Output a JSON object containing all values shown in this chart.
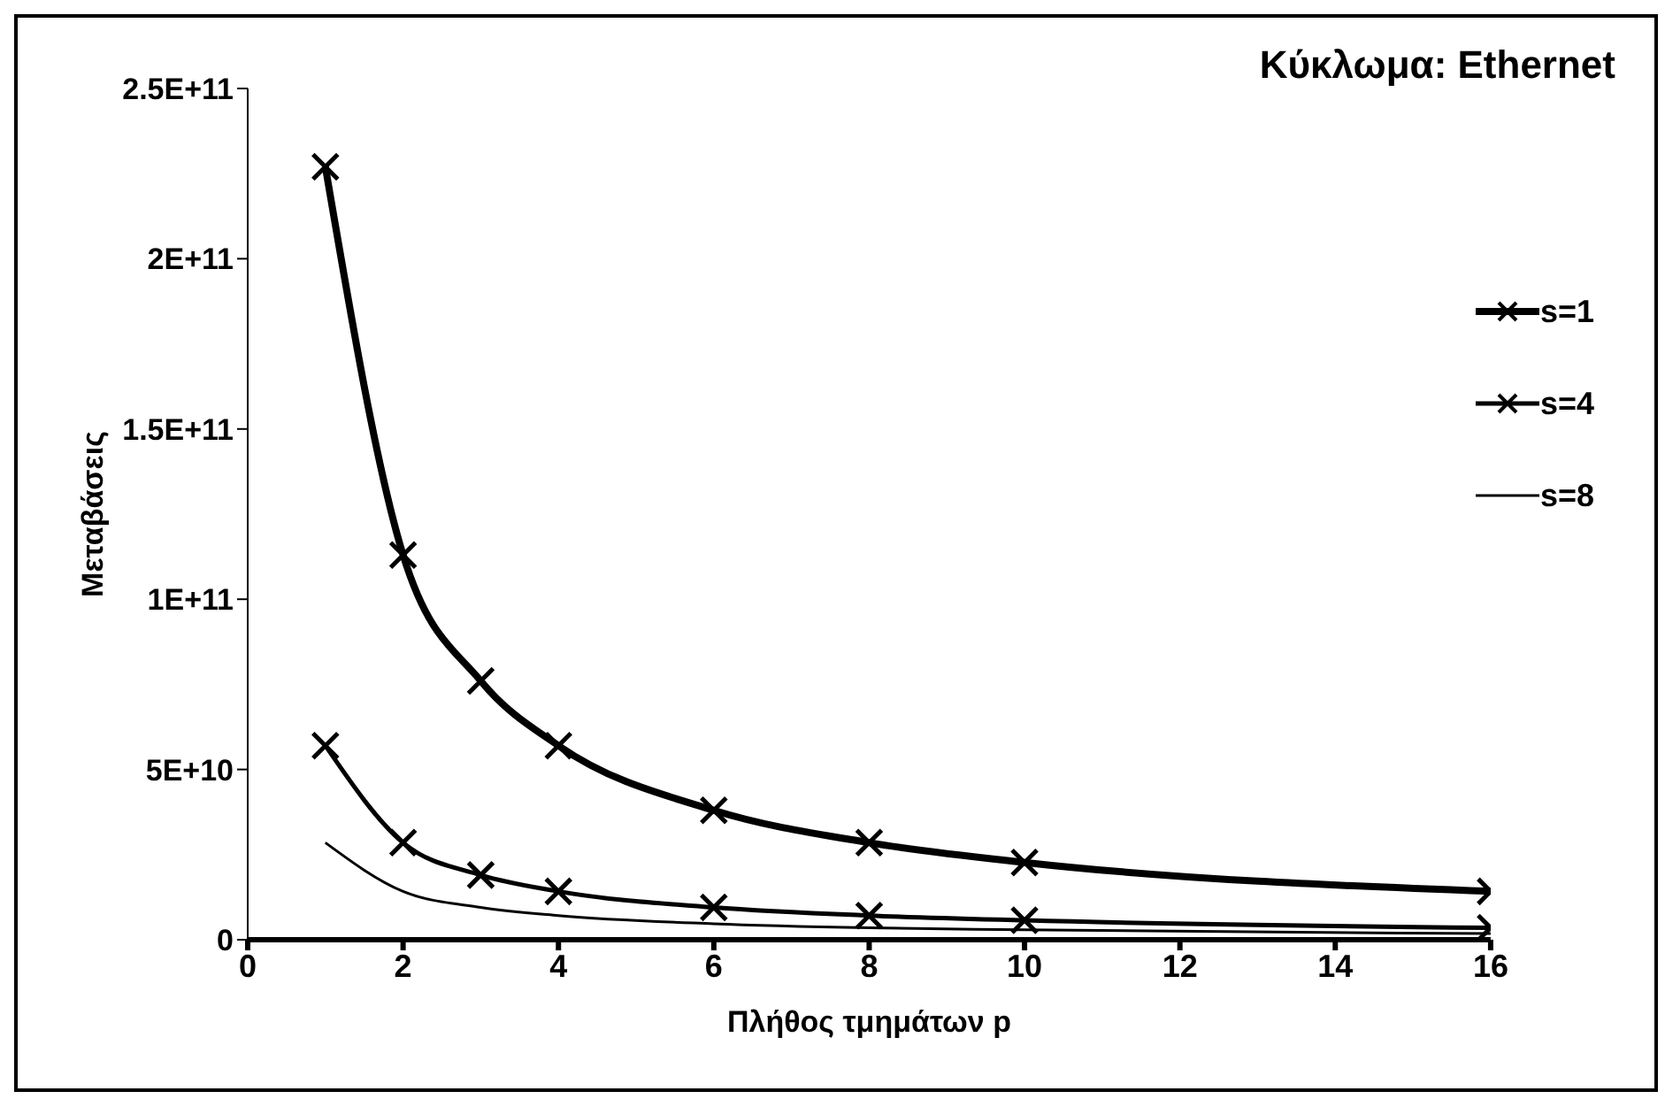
{
  "chart_data": {
    "type": "line",
    "title": "Κύκλωμα: Ethernet",
    "xlabel": "Πλήθος τμημάτων p",
    "ylabel": "Μεταβάσεις",
    "x": [
      1,
      2,
      3,
      4,
      6,
      8,
      10,
      16
    ],
    "series": [
      {
        "name": "s=1",
        "color": "#000000",
        "marker": "cross",
        "values": [
          227000000000.0,
          113000000000.0,
          76000000000.0,
          57000000000.0,
          38000000000.0,
          28500000000.0,
          22700000000.0,
          14200000000.0
        ]
      },
      {
        "name": "s=4",
        "color": "#000000",
        "marker": "cross",
        "values": [
          57000000000.0,
          28500000000.0,
          19000000000.0,
          14200000000.0,
          9500000000.0,
          7100000000.0,
          5700000000.0,
          3500000000.0
        ]
      },
      {
        "name": "s=8",
        "color": "#000000",
        "marker": "none",
        "values": [
          28500000000.0,
          14200000000.0,
          9500000000.0,
          7100000000.0,
          4700000000.0,
          3500000000.0,
          2900000000.0,
          1800000000.0
        ]
      }
    ],
    "xlim": [
      0,
      16
    ],
    "xticks": [
      0,
      2,
      4,
      6,
      8,
      10,
      12,
      14,
      16
    ],
    "ylim": [
      0,
      250000000000.0
    ],
    "yticks": [
      {
        "value": 0,
        "label": "0"
      },
      {
        "value": 50000000000.0,
        "label": "5E+10"
      },
      {
        "value": 100000000000.0,
        "label": "1E+11"
      },
      {
        "value": 150000000000.0,
        "label": "1.5E+11"
      },
      {
        "value": 200000000000.0,
        "label": "2E+11"
      },
      {
        "value": 250000000000.0,
        "label": "2.5E+11"
      }
    ],
    "grid": false,
    "legend": "right",
    "line_style": "solid"
  }
}
